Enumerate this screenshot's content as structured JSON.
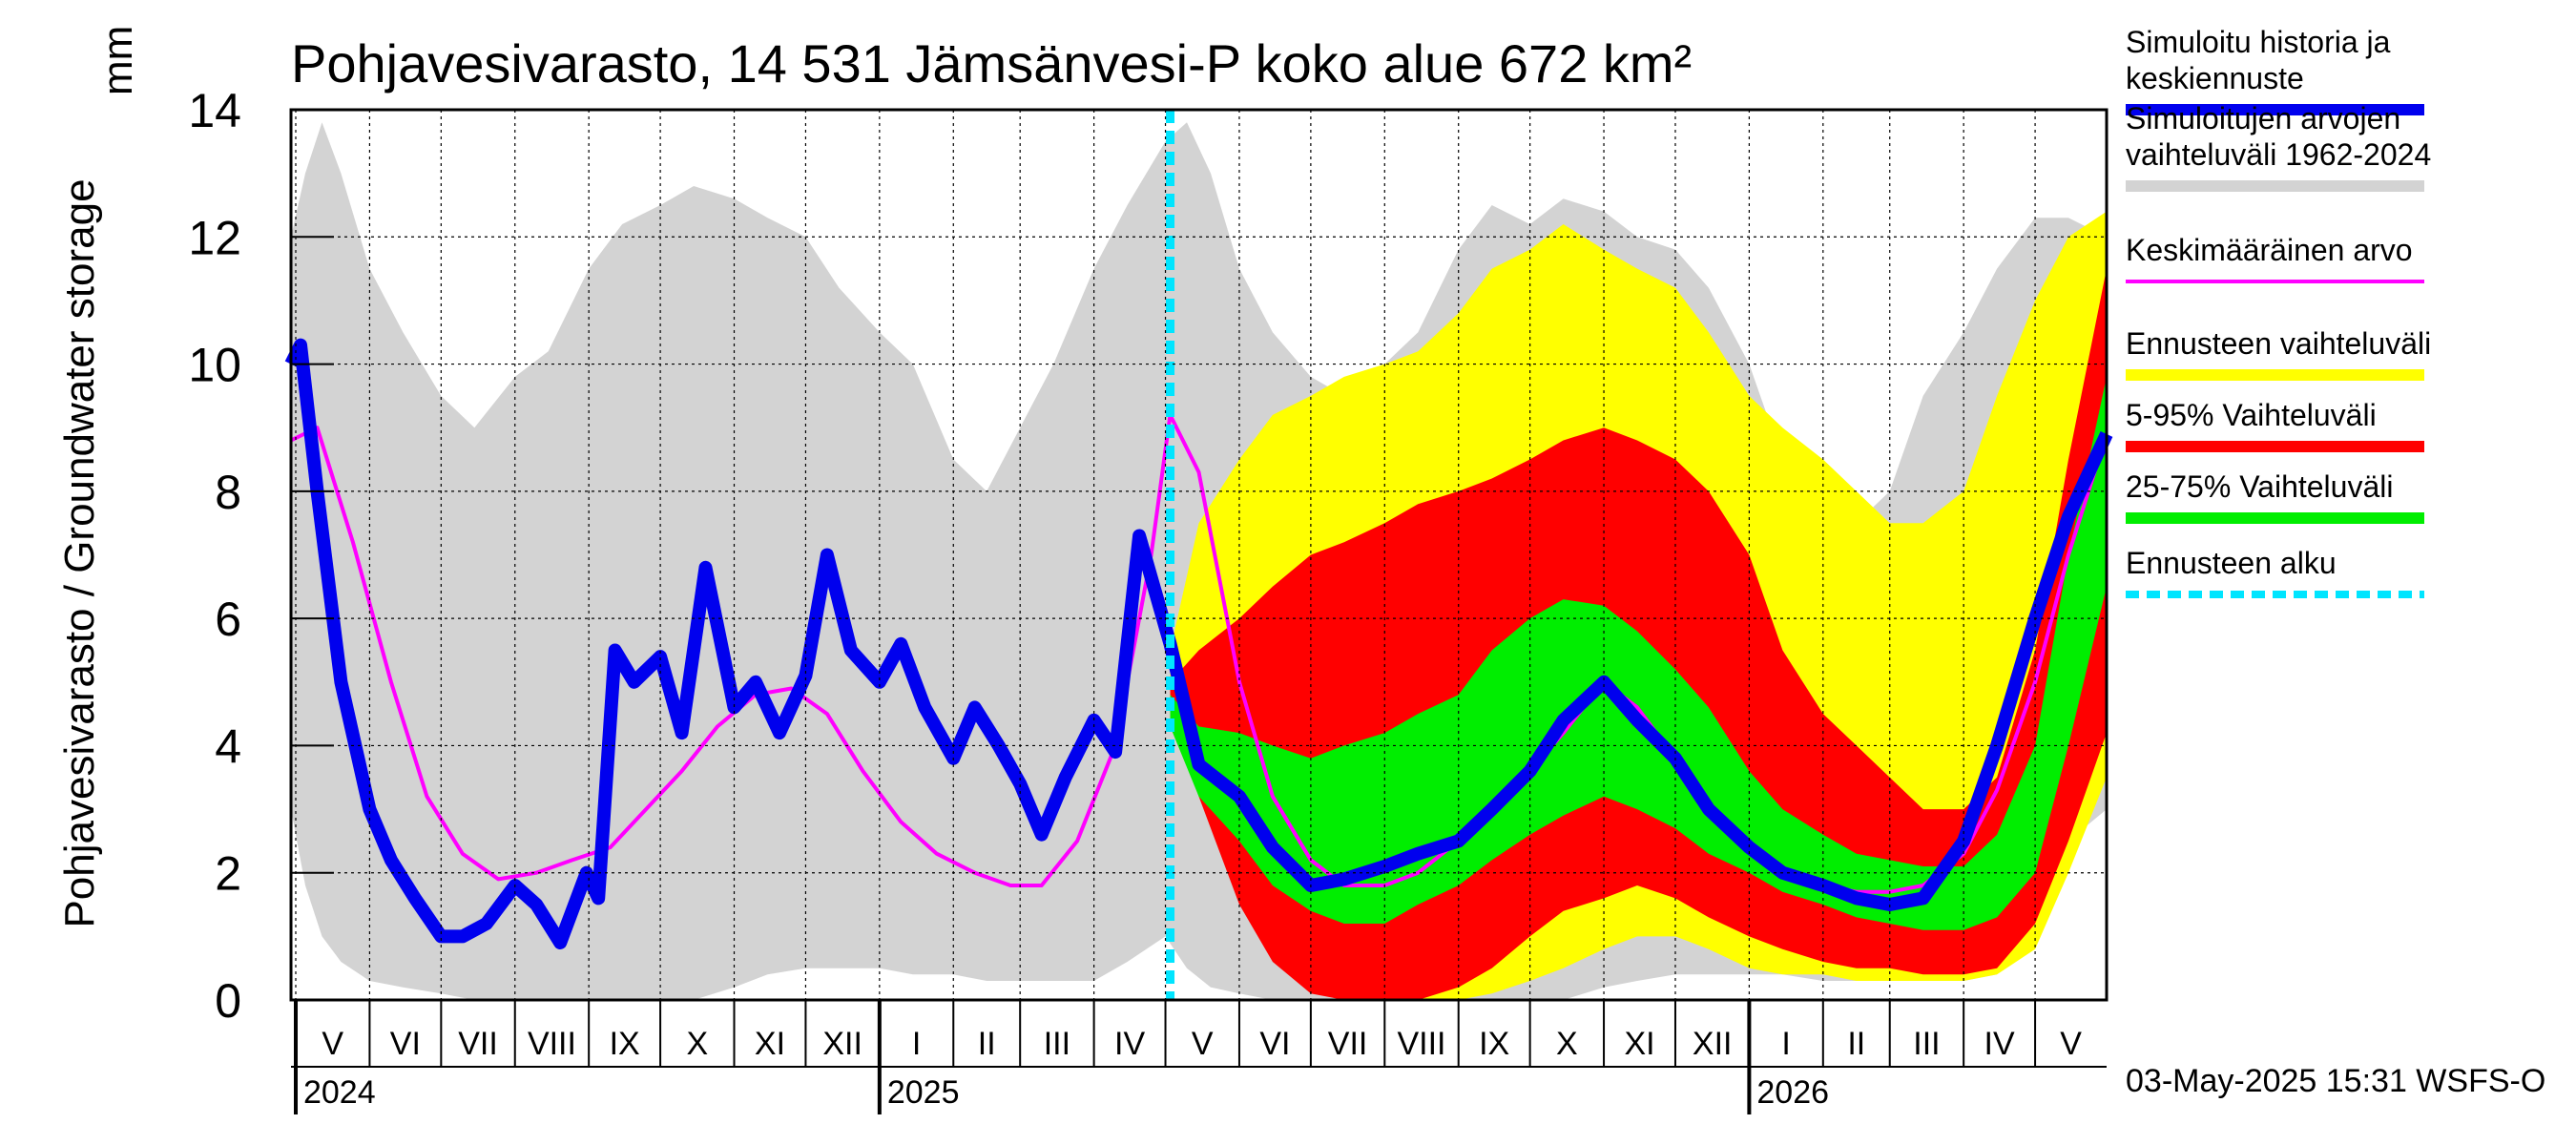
{
  "chart_data": {
    "type": "area",
    "title": "Pohjavesivarasto, 14 531 Jämsänvesi-P koko alue 672 km²",
    "ylabel": "Pohjavesivarasto / Groundwater storage",
    "yunit": "mm",
    "ylim": [
      0,
      14
    ],
    "yticks": [
      "0",
      "2",
      "4",
      "6",
      "8",
      "10",
      "12",
      "14"
    ],
    "xrange": [
      "2024-04-29",
      "2026-05-31"
    ],
    "forecast_start": "2025-05-03",
    "grid": true,
    "legend_position": "right",
    "month_labels": [
      {
        "label": "V",
        "date": "2024-05-01"
      },
      {
        "label": "VI",
        "date": "2024-06-01"
      },
      {
        "label": "VII",
        "date": "2024-07-01"
      },
      {
        "label": "VIII",
        "date": "2024-08-01"
      },
      {
        "label": "IX",
        "date": "2024-09-01"
      },
      {
        "label": "X",
        "date": "2024-10-01"
      },
      {
        "label": "XI",
        "date": "2024-11-01"
      },
      {
        "label": "XII",
        "date": "2024-12-01"
      },
      {
        "label": "I",
        "date": "2025-01-01"
      },
      {
        "label": "II",
        "date": "2025-02-01"
      },
      {
        "label": "III",
        "date": "2025-03-01"
      },
      {
        "label": "IV",
        "date": "2025-04-01"
      },
      {
        "label": "V",
        "date": "2025-05-01"
      },
      {
        "label": "VI",
        "date": "2025-06-01"
      },
      {
        "label": "VII",
        "date": "2025-07-01"
      },
      {
        "label": "VIII",
        "date": "2025-08-01"
      },
      {
        "label": "IX",
        "date": "2025-09-01"
      },
      {
        "label": "X",
        "date": "2025-10-01"
      },
      {
        "label": "XI",
        "date": "2025-11-01"
      },
      {
        "label": "XII",
        "date": "2025-12-01"
      },
      {
        "label": "I",
        "date": "2026-01-01"
      },
      {
        "label": "II",
        "date": "2026-02-01"
      },
      {
        "label": "III",
        "date": "2026-03-01"
      },
      {
        "label": "IV",
        "date": "2026-04-01"
      },
      {
        "label": "V",
        "date": "2026-05-01"
      }
    ],
    "year_labels": [
      {
        "label": "2024",
        "date": "2024-05-01"
      },
      {
        "label": "2025",
        "date": "2025-01-01"
      },
      {
        "label": "2026",
        "date": "2026-01-01"
      }
    ],
    "series": [
      {
        "name": "Simuloitujen arvojen vaihteluväli 1962-2024",
        "kind": "band",
        "color": "#d3d3d3",
        "x": [
          "2024-04-29",
          "2024-05-05",
          "2024-05-12",
          "2024-05-20",
          "2024-06-01",
          "2024-06-15",
          "2024-07-01",
          "2024-07-15",
          "2024-08-01",
          "2024-08-15",
          "2024-09-01",
          "2024-09-15",
          "2024-10-01",
          "2024-10-15",
          "2024-11-01",
          "2024-11-15",
          "2024-12-01",
          "2024-12-15",
          "2025-01-01",
          "2025-01-15",
          "2025-02-01",
          "2025-02-15",
          "2025-03-01",
          "2025-03-15",
          "2025-04-01",
          "2025-04-15",
          "2025-05-01",
          "2025-05-10",
          "2025-05-20",
          "2025-06-01",
          "2025-06-15",
          "2025-07-01",
          "2025-07-15",
          "2025-08-01",
          "2025-08-15",
          "2025-09-01",
          "2025-09-15",
          "2025-10-01",
          "2025-10-15",
          "2025-11-01",
          "2025-11-15",
          "2025-12-01",
          "2025-12-15",
          "2026-01-01",
          "2026-01-15",
          "2026-02-01",
          "2026-02-15",
          "2026-03-01",
          "2026-03-15",
          "2026-04-01",
          "2026-04-15",
          "2026-05-01",
          "2026-05-15",
          "2026-05-31"
        ],
        "low": [
          3.0,
          1.8,
          1.0,
          0.6,
          0.3,
          0.2,
          0.1,
          0.0,
          0.0,
          0.0,
          0.0,
          0.0,
          0.0,
          0.0,
          0.2,
          0.4,
          0.5,
          0.5,
          0.5,
          0.4,
          0.4,
          0.3,
          0.3,
          0.3,
          0.3,
          0.6,
          1.0,
          0.5,
          0.2,
          0.1,
          0.0,
          0.0,
          0.0,
          0.0,
          0.0,
          0.0,
          0.0,
          0.0,
          0.0,
          0.2,
          0.3,
          0.4,
          0.4,
          0.4,
          0.4,
          0.3,
          0.3,
          0.3,
          0.3,
          0.3,
          0.4,
          1.2,
          2.5,
          3.0
        ],
        "high": [
          12.0,
          13.0,
          13.8,
          13.0,
          11.5,
          10.5,
          9.5,
          9.0,
          9.8,
          10.2,
          11.5,
          12.2,
          12.5,
          12.8,
          12.6,
          12.3,
          12.0,
          11.2,
          10.5,
          10.0,
          8.5,
          8.0,
          9.0,
          10.0,
          11.5,
          12.5,
          13.5,
          13.8,
          13.0,
          11.5,
          10.5,
          9.8,
          9.5,
          10.0,
          10.5,
          11.8,
          12.5,
          12.2,
          12.6,
          12.4,
          12.0,
          11.8,
          11.2,
          10.0,
          8.5,
          7.5,
          7.5,
          8.0,
          9.5,
          10.5,
          11.5,
          12.3,
          12.3,
          12.0
        ]
      },
      {
        "name": "Ennusteen vaihteluväli",
        "kind": "band",
        "color": "#ffff00",
        "x": [
          "2025-05-03",
          "2025-05-15",
          "2025-06-01",
          "2025-06-15",
          "2025-07-01",
          "2025-07-15",
          "2025-08-01",
          "2025-08-15",
          "2025-09-01",
          "2025-09-15",
          "2025-10-01",
          "2025-10-15",
          "2025-11-01",
          "2025-11-15",
          "2025-12-01",
          "2025-12-15",
          "2026-01-01",
          "2026-01-15",
          "2026-02-01",
          "2026-02-15",
          "2026-03-01",
          "2026-03-15",
          "2026-04-01",
          "2026-04-15",
          "2026-05-01",
          "2026-05-15",
          "2026-05-31"
        ],
        "low": [
          4.8,
          3.5,
          2.0,
          1.0,
          0.2,
          0.0,
          0.0,
          0.0,
          0.0,
          0.1,
          0.3,
          0.5,
          0.8,
          1.0,
          1.0,
          0.8,
          0.5,
          0.4,
          0.4,
          0.3,
          0.3,
          0.3,
          0.3,
          0.4,
          0.8,
          2.0,
          3.5
        ],
        "high": [
          5.5,
          7.5,
          8.5,
          9.2,
          9.5,
          9.8,
          10.0,
          10.2,
          10.8,
          11.5,
          11.8,
          12.2,
          11.8,
          11.5,
          11.2,
          10.5,
          9.5,
          9.0,
          8.5,
          8.0,
          7.5,
          7.5,
          8.0,
          9.5,
          11.0,
          12.0,
          12.4
        ]
      },
      {
        "name": "5-95% Vaihteluväli",
        "kind": "band",
        "color": "#ff0000",
        "x": [
          "2025-05-03",
          "2025-05-15",
          "2025-06-01",
          "2025-06-15",
          "2025-07-01",
          "2025-07-15",
          "2025-08-01",
          "2025-08-15",
          "2025-09-01",
          "2025-09-15",
          "2025-10-01",
          "2025-10-15",
          "2025-11-01",
          "2025-11-15",
          "2025-12-01",
          "2025-12-15",
          "2026-01-01",
          "2026-01-15",
          "2026-02-01",
          "2026-02-15",
          "2026-03-01",
          "2026-03-15",
          "2026-04-01",
          "2026-04-15",
          "2026-05-01",
          "2026-05-15",
          "2026-05-31"
        ],
        "low": [
          4.6,
          3.2,
          1.5,
          0.6,
          0.1,
          0.0,
          0.0,
          0.0,
          0.2,
          0.5,
          1.0,
          1.4,
          1.6,
          1.8,
          1.6,
          1.3,
          1.0,
          0.8,
          0.6,
          0.5,
          0.5,
          0.4,
          0.4,
          0.5,
          1.2,
          2.5,
          4.2
        ],
        "high": [
          5.0,
          5.5,
          6.0,
          6.5,
          7.0,
          7.2,
          7.5,
          7.8,
          8.0,
          8.2,
          8.5,
          8.8,
          9.0,
          8.8,
          8.5,
          8.0,
          7.0,
          5.5,
          4.5,
          4.0,
          3.5,
          3.0,
          3.0,
          3.5,
          5.5,
          8.5,
          11.5
        ]
      },
      {
        "name": "25-75% Vaihteluväli",
        "kind": "band",
        "color": "#00ee00",
        "x": [
          "2025-05-03",
          "2025-05-15",
          "2025-06-01",
          "2025-06-15",
          "2025-07-01",
          "2025-07-15",
          "2025-08-01",
          "2025-08-15",
          "2025-09-01",
          "2025-09-15",
          "2025-10-01",
          "2025-10-15",
          "2025-11-01",
          "2025-11-15",
          "2025-12-01",
          "2025-12-15",
          "2026-01-01",
          "2026-01-15",
          "2026-02-01",
          "2026-02-15",
          "2026-03-01",
          "2026-03-15",
          "2026-04-01",
          "2026-04-15",
          "2026-05-01",
          "2026-05-15",
          "2026-05-31"
        ],
        "low": [
          4.3,
          3.2,
          2.5,
          1.8,
          1.4,
          1.2,
          1.2,
          1.5,
          1.8,
          2.2,
          2.6,
          2.9,
          3.2,
          3.0,
          2.7,
          2.3,
          2.0,
          1.7,
          1.5,
          1.3,
          1.2,
          1.1,
          1.1,
          1.3,
          2.0,
          4.0,
          6.5
        ],
        "high": [
          4.8,
          4.3,
          4.2,
          4.0,
          3.8,
          4.0,
          4.2,
          4.5,
          4.8,
          5.5,
          6.0,
          6.3,
          6.2,
          5.8,
          5.2,
          4.6,
          3.6,
          3.0,
          2.6,
          2.3,
          2.2,
          2.1,
          2.1,
          2.6,
          4.0,
          7.0,
          9.8
        ]
      },
      {
        "name": "Keskimääräinen arvo",
        "kind": "line",
        "color": "#ff00ff",
        "x": [
          "2024-04-29",
          "2024-05-10",
          "2024-05-25",
          "2024-06-10",
          "2024-06-25",
          "2024-07-10",
          "2024-07-25",
          "2024-08-10",
          "2024-08-25",
          "2024-09-10",
          "2024-09-25",
          "2024-10-10",
          "2024-10-25",
          "2024-11-10",
          "2024-11-25",
          "2024-12-10",
          "2024-12-25",
          "2025-01-10",
          "2025-01-25",
          "2025-02-10",
          "2025-02-25",
          "2025-03-10",
          "2025-03-25",
          "2025-04-10",
          "2025-04-25",
          "2025-05-03",
          "2025-05-15",
          "2025-06-01",
          "2025-06-15",
          "2025-07-01",
          "2025-07-15",
          "2025-08-01",
          "2025-08-15",
          "2025-09-01",
          "2025-09-15",
          "2025-10-01",
          "2025-10-15",
          "2025-11-01",
          "2025-11-15",
          "2025-12-01",
          "2025-12-15",
          "2026-01-01",
          "2026-01-15",
          "2026-02-01",
          "2026-02-15",
          "2026-03-01",
          "2026-03-15",
          "2026-04-01",
          "2026-04-15",
          "2026-05-01",
          "2026-05-15",
          "2026-05-31"
        ],
        "y": [
          8.8,
          9.0,
          7.2,
          5.0,
          3.2,
          2.3,
          1.9,
          2.0,
          2.2,
          2.4,
          3.0,
          3.6,
          4.3,
          4.8,
          4.9,
          4.5,
          3.6,
          2.8,
          2.3,
          2.0,
          1.8,
          1.8,
          2.5,
          4.0,
          7.0,
          9.2,
          8.3,
          5.0,
          3.2,
          2.2,
          1.8,
          1.8,
          2.0,
          2.5,
          3.0,
          3.6,
          4.2,
          5.0,
          4.6,
          3.8,
          3.0,
          2.4,
          2.0,
          1.8,
          1.7,
          1.7,
          1.8,
          2.3,
          3.3,
          5.0,
          7.0,
          8.9
        ]
      },
      {
        "name": "Simuloitu historia ja keskiennuste",
        "kind": "line",
        "color": "#0000ee",
        "x": [
          "2024-04-29",
          "2024-05-03",
          "2024-05-10",
          "2024-05-20",
          "2024-06-01",
          "2024-06-10",
          "2024-06-20",
          "2024-07-01",
          "2024-07-10",
          "2024-07-20",
          "2024-08-01",
          "2024-08-10",
          "2024-08-20",
          "2024-08-31",
          "2024-09-05",
          "2024-09-12",
          "2024-09-20",
          "2024-10-01",
          "2024-10-10",
          "2024-10-20",
          "2024-11-01",
          "2024-11-10",
          "2024-11-20",
          "2024-12-01",
          "2024-12-10",
          "2024-12-20",
          "2025-01-01",
          "2025-01-10",
          "2025-01-20",
          "2025-02-01",
          "2025-02-10",
          "2025-02-20",
          "2025-03-01",
          "2025-03-10",
          "2025-03-20",
          "2025-04-01",
          "2025-04-10",
          "2025-04-20",
          "2025-05-03",
          "2025-05-15",
          "2025-06-01",
          "2025-06-15",
          "2025-07-01",
          "2025-07-15",
          "2025-08-01",
          "2025-08-15",
          "2025-09-01",
          "2025-09-15",
          "2025-10-01",
          "2025-10-15",
          "2025-11-01",
          "2025-11-15",
          "2025-12-01",
          "2025-12-15",
          "2026-01-01",
          "2026-01-15",
          "2026-02-01",
          "2026-02-15",
          "2026-03-01",
          "2026-03-15",
          "2026-04-01",
          "2026-04-15",
          "2026-05-01",
          "2026-05-15",
          "2026-05-31"
        ],
        "y": [
          10.0,
          10.3,
          8.0,
          5.0,
          3.0,
          2.2,
          1.6,
          1.0,
          1.0,
          1.2,
          1.8,
          1.5,
          0.9,
          2.0,
          1.6,
          5.5,
          5.0,
          5.4,
          4.2,
          6.8,
          4.6,
          5.0,
          4.2,
          5.1,
          7.0,
          5.5,
          5.0,
          5.6,
          4.6,
          3.8,
          4.6,
          4.0,
          3.4,
          2.6,
          3.5,
          4.4,
          3.9,
          7.3,
          5.6,
          3.7,
          3.2,
          2.4,
          1.8,
          1.9,
          2.1,
          2.3,
          2.5,
          3.0,
          3.6,
          4.4,
          5.0,
          4.4,
          3.8,
          3.0,
          2.4,
          2.0,
          1.8,
          1.6,
          1.5,
          1.6,
          2.5,
          4.0,
          6.0,
          7.6,
          8.9
        ]
      },
      {
        "name": "Ennusteen alku",
        "kind": "vline",
        "color": "#00e5ff",
        "x": "2025-05-03"
      }
    ],
    "legend": [
      {
        "label": "Simuloitu historia ja keskiennuste",
        "color": "#0000ee",
        "style": "solid"
      },
      {
        "label": "Simuloitujen arvojen vaihteluväli 1962-2024",
        "color": "#d3d3d3",
        "style": "solid"
      },
      {
        "label": "Keskimääräinen arvo",
        "color": "#ff00ff",
        "style": "thin"
      },
      {
        "label": "Ennusteen vaihteluväli",
        "color": "#ffff00",
        "style": "solid"
      },
      {
        "label": "5-95% Vaihteluväli",
        "color": "#ff0000",
        "style": "solid"
      },
      {
        "label": "25-75% Vaihteluväli",
        "color": "#00ee00",
        "style": "solid"
      },
      {
        "label": "Ennusteen alku",
        "color": "#00e5ff",
        "style": "dashed"
      }
    ],
    "footer": "03-May-2025 15:31 WSFS-O"
  }
}
